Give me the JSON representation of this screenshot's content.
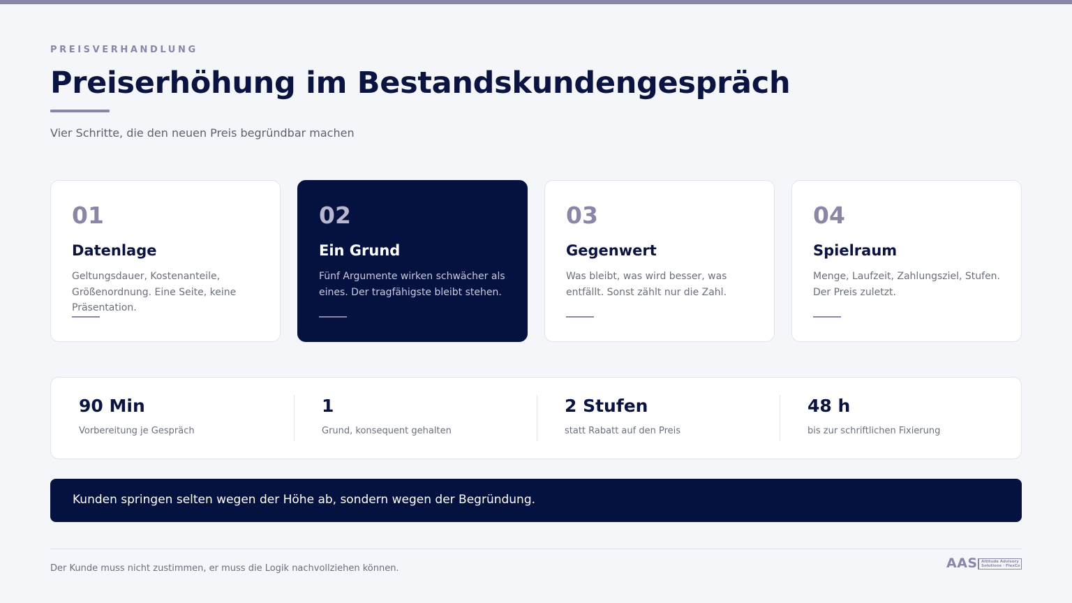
{
  "header": {
    "eyebrow": "PREISVERHANDLUNG",
    "title": "Preiserhöhung im Bestandskundengespräch",
    "subtitle": "Vier Schritte, die den neuen Preis begründbar machen"
  },
  "cards": [
    {
      "num": "01",
      "title": "Datenlage",
      "text": "Geltungsdauer, Kostenanteile, Größenordnung. Eine Seite, keine Präsentation.",
      "active": false
    },
    {
      "num": "02",
      "title": "Ein Grund",
      "text": "Fünf Argumente wirken schwächer als eines. Der tragfähigste bleibt stehen.",
      "active": true
    },
    {
      "num": "03",
      "title": "Gegenwert",
      "text": "Was bleibt, was wird besser, was entfällt. Sonst zählt nur die Zahl.",
      "active": false
    },
    {
      "num": "04",
      "title": "Spielraum",
      "text": "Menge, Laufzeit, Zahlungsziel, Stufen. Der Preis zuletzt.",
      "active": false
    }
  ],
  "stats": [
    {
      "value": "90 Min",
      "label": "Vorbereitung je Gespräch"
    },
    {
      "value": "1",
      "label": "Grund, konsequent gehalten"
    },
    {
      "value": "2 Stufen",
      "label": "statt Rabatt auf den Preis"
    },
    {
      "value": "48 h",
      "label": "bis zur schriftlichen Fixierung"
    }
  ],
  "banner": {
    "text": "Kunden springen selten wegen der Höhe ab, sondern wegen der Begründung."
  },
  "footer": {
    "text": "Der Kunde muss nicht zustimmen, er muss die Logik nachvollziehen können.",
    "logo_mark": "AAS",
    "logo_line1": "Altitude Advisory",
    "logo_line2": "Solutions · FlexCo"
  },
  "colors": {
    "navy": "#051240",
    "accent": "#8a86aa",
    "background": "#f4f6fa"
  }
}
